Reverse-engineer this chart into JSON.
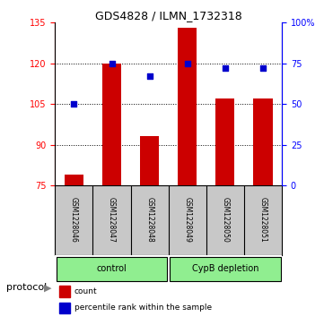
{
  "title": "GDS4828 / ILMN_1732318",
  "samples": [
    "GSM1228046",
    "GSM1228047",
    "GSM1228048",
    "GSM1228049",
    "GSM1228050",
    "GSM1228051"
  ],
  "counts": [
    79,
    120,
    93,
    133,
    107,
    107
  ],
  "percentile_ranks": [
    50,
    75,
    67,
    75,
    72,
    72
  ],
  "groups": [
    {
      "label": "control",
      "color": "#90EE90"
    },
    {
      "label": "CypB depletion",
      "color": "#90EE90"
    }
  ],
  "ylim_left": [
    75,
    135
  ],
  "yticks_left": [
    75,
    90,
    105,
    120,
    135
  ],
  "ylim_right": [
    0,
    100
  ],
  "yticks_right": [
    0,
    25,
    50,
    75,
    100
  ],
  "bar_color": "#CC0000",
  "dot_color": "#0000CC",
  "bar_width": 0.5,
  "sample_box_color": "#C8C8C8",
  "protocol_label": "protocol",
  "legend_count_label": "count",
  "legend_percentile_label": "percentile rank within the sample",
  "background_color": "#ffffff",
  "right_axis_tick_labels": [
    "0",
    "25",
    "50",
    "75",
    "100%"
  ]
}
